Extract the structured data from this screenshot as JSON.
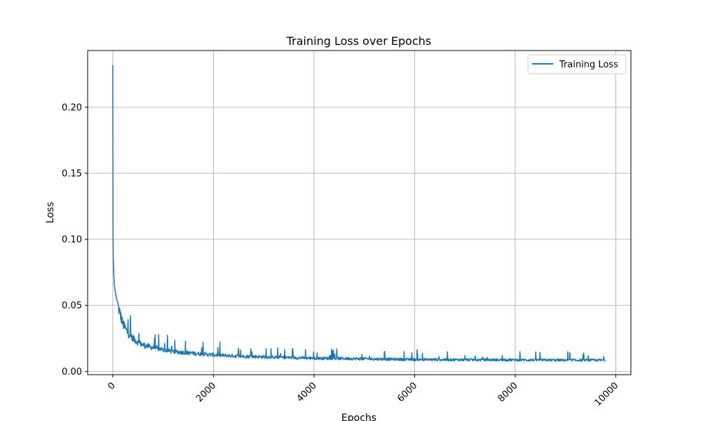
{
  "chart_data": {
    "type": "line",
    "title": "Training Loss over Epochs",
    "xlabel": "Epochs",
    "ylabel": "Loss",
    "xlim": [
      -500,
      10300
    ],
    "ylim": [
      -0.0025,
      0.243
    ],
    "xticks": [
      0,
      2000,
      4000,
      6000,
      8000,
      10000
    ],
    "xtick_labels": [
      "0",
      "2000",
      "4000",
      "6000",
      "8000",
      "10000"
    ],
    "yticks": [
      0.0,
      0.05,
      0.1,
      0.15,
      0.2
    ],
    "ytick_labels": [
      "0.00",
      "0.05",
      "0.10",
      "0.15",
      "0.20"
    ],
    "grid": true,
    "legend": {
      "placement": "top-right",
      "entries": [
        "Training Loss"
      ]
    },
    "series": [
      {
        "name": "Training Loss",
        "color": "#1f77b4",
        "x": [
          0,
          5,
          10,
          20,
          30,
          50,
          75,
          100,
          150,
          200,
          300,
          400,
          500,
          600,
          800,
          1000,
          1200,
          1500,
          2000,
          2500,
          3000,
          3500,
          4000,
          5000,
          6000,
          7000,
          8000,
          9000,
          9800
        ],
        "y": [
          0.232,
          0.105,
          0.085,
          0.075,
          0.066,
          0.06,
          0.055,
          0.05,
          0.043,
          0.036,
          0.029,
          0.025,
          0.022,
          0.02,
          0.018,
          0.0165,
          0.015,
          0.014,
          0.0125,
          0.0115,
          0.011,
          0.0105,
          0.01,
          0.0095,
          0.009,
          0.0088,
          0.0087,
          0.0085,
          0.0085
        ]
      }
    ]
  }
}
